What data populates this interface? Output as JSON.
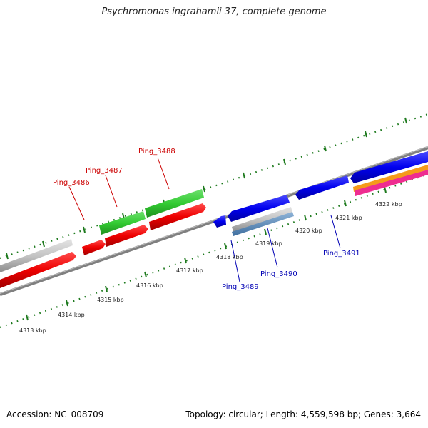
{
  "title": "Psychromonas ingrahamii 37, complete genome",
  "footer": {
    "accession": "Accession: NC_008709",
    "summary": "Topology: circular; Length: 4,559,598 bp; Genes: 3,664"
  },
  "colors": {
    "forward_label": "#cc0000",
    "reverse_label": "#0000b4",
    "backbone": "#808080",
    "ticks": "#1e7a1e"
  },
  "kbp_labels": [
    "4313 kbp",
    "4314 kbp",
    "4315 kbp",
    "4316 kbp",
    "4317 kbp",
    "4318 kbp",
    "4319 kbp",
    "4320 kbp",
    "4321 kbp",
    "4322 kbp"
  ],
  "gene_labels": [
    {
      "text": "Ping_3486",
      "strand": "forward"
    },
    {
      "text": "Ping_3487",
      "strand": "forward"
    },
    {
      "text": "Ping_3488",
      "strand": "forward"
    },
    {
      "text": "Ping_3489",
      "strand": "reverse"
    },
    {
      "text": "Ping_3490",
      "strand": "reverse"
    },
    {
      "text": "Ping_3491",
      "strand": "reverse"
    }
  ]
}
